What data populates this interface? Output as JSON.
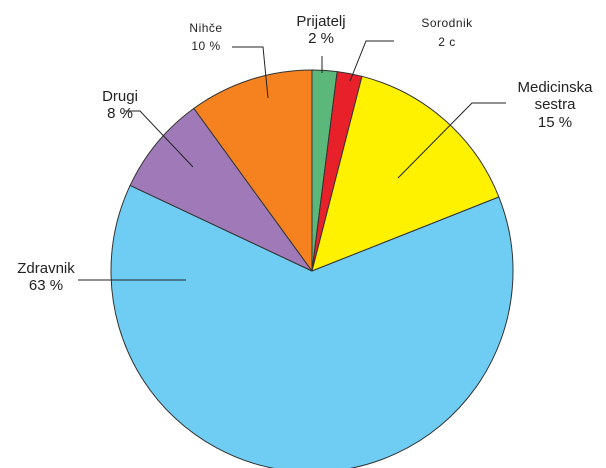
{
  "chart_data": {
    "type": "pie",
    "slices": [
      {
        "label": "Prijatelj",
        "value_text": "2 %",
        "value": 2,
        "color": "#5cb87a"
      },
      {
        "label": "Sorodnik",
        "value_text": "2 c",
        "value": 2,
        "color": "#e8202a"
      },
      {
        "label": "Medicinska sestra",
        "label_lines": [
          "Medicinska",
          "sestra"
        ],
        "value_text": "15 %",
        "value": 15,
        "color": "#fff200"
      },
      {
        "label": "Zdravnik",
        "value_text": "63 %",
        "value": 63,
        "color": "#6fcdf3"
      },
      {
        "label": "Drugi",
        "value_text": "8 %",
        "value": 8,
        "color": "#a07ab8"
      },
      {
        "label": "Nihče",
        "value_text": "10 %",
        "value": 10,
        "color": "#f5821f"
      }
    ]
  }
}
